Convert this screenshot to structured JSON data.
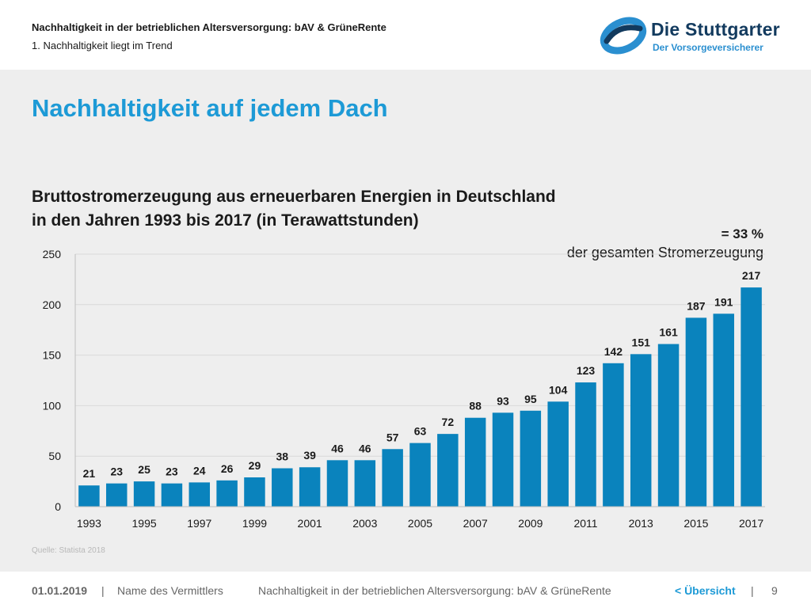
{
  "header": {
    "title": "Nachhaltigkeit in der betrieblichen Altersversorgung: bAV & GrüneRente",
    "subtitle": "1. Nachhaltigkeit liegt im Trend"
  },
  "logo": {
    "brand": "Die Stuttgarter",
    "tagline": "Der Vorsorgeversicherer",
    "colors": {
      "dark": "#123a5e",
      "light": "#2a8fd0"
    }
  },
  "slide": {
    "title": "Nachhaltigkeit auf jedem Dach",
    "chart_title_line1": "Bruttostromerzeugung aus erneuerbaren Energien in Deutschland",
    "chart_title_line2": "in den Jahren 1993 bis 2017 (in Terawattstunden)",
    "note_percent": "= 33 %",
    "note_text": "der gesamten Stromerzeugung",
    "source": "Quelle: Statista 2018"
  },
  "chart_data": {
    "type": "bar",
    "categories": [
      "1993",
      "1994",
      "1995",
      "1996",
      "1997",
      "1998",
      "1999",
      "2000",
      "2001",
      "2002",
      "2003",
      "2004",
      "2005",
      "2006",
      "2007",
      "2008",
      "2009",
      "2010",
      "2011",
      "2012",
      "2013",
      "2014",
      "2015",
      "2016",
      "2017"
    ],
    "x_tick_labels": [
      "1993",
      "1995",
      "1997",
      "1999",
      "2001",
      "2003",
      "2005",
      "2007",
      "2009",
      "2011",
      "2013",
      "2015",
      "2017"
    ],
    "values": [
      21,
      23,
      25,
      23,
      24,
      26,
      29,
      38,
      39,
      46,
      46,
      57,
      63,
      72,
      88,
      93,
      95,
      104,
      123,
      142,
      151,
      161,
      187,
      191,
      217
    ],
    "ylim": [
      0,
      250
    ],
    "yticks": [
      0,
      50,
      100,
      150,
      200,
      250
    ],
    "grid": true,
    "colors": {
      "bar": "#0a83bd",
      "title": "#1d9ad6"
    }
  },
  "footer": {
    "date": "01.01.2019",
    "separator": "|",
    "agent": "Name des Vermittlers",
    "topic": "Nachhaltigkeit in der betrieblichen Altersversorgung: bAV & GrüneRente",
    "back_link": "< Übersicht",
    "page": "9"
  }
}
